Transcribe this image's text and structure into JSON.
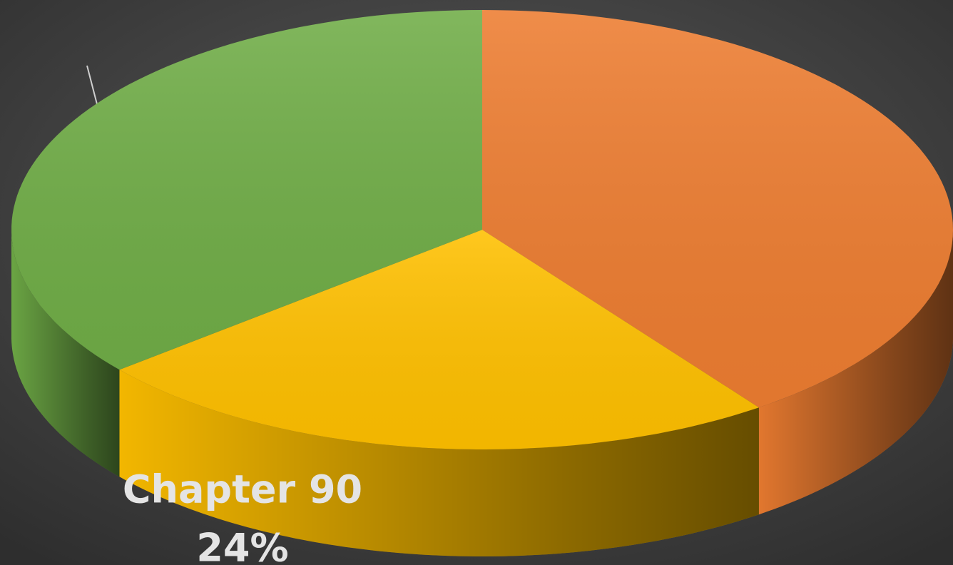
{
  "chart_data": {
    "type": "pie",
    "categories": [
      null,
      "Chapter 90",
      null
    ],
    "values": [
      40,
      24,
      36
    ],
    "value_labels": [
      null,
      "24%",
      null
    ],
    "colors": [
      "#ed7d31",
      "#ffc000",
      "#70ad47"
    ]
  }
}
